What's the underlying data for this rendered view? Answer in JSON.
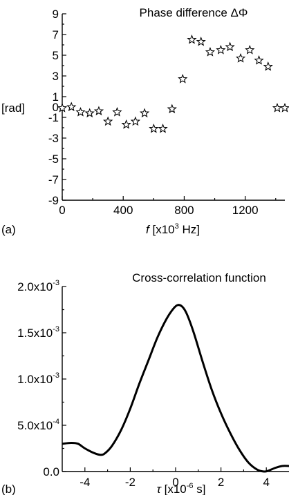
{
  "chart_data": [
    {
      "panel_label": "(a)",
      "type": "scatter",
      "marker": "star",
      "title": "Phase difference ΔΦ",
      "ylabel": "[rad]",
      "xlabel_parts": [
        "f",
        " [x10",
        "3",
        " Hz]"
      ],
      "xlim": [
        0,
        1460
      ],
      "ylim": [
        -9,
        9
      ],
      "xticks": [
        0,
        400,
        800,
        1200
      ],
      "yticks": [
        9,
        7,
        5,
        3,
        1,
        0,
        -1,
        -3,
        -5,
        -7,
        -9
      ],
      "ytick_labels": [
        "9",
        "7",
        "5",
        "3",
        "1",
        "0",
        "-1",
        "-3",
        "-5",
        "-7",
        "-9"
      ],
      "points": [
        {
          "x": 0,
          "y": -0.1
        },
        {
          "x": 60,
          "y": 0.0
        },
        {
          "x": 120,
          "y": -0.5
        },
        {
          "x": 180,
          "y": -0.6
        },
        {
          "x": 240,
          "y": -0.4
        },
        {
          "x": 300,
          "y": -1.4
        },
        {
          "x": 360,
          "y": -0.5
        },
        {
          "x": 420,
          "y": -1.7
        },
        {
          "x": 480,
          "y": -1.4
        },
        {
          "x": 540,
          "y": -0.6
        },
        {
          "x": 600,
          "y": -2.1
        },
        {
          "x": 660,
          "y": -2.1
        },
        {
          "x": 720,
          "y": -0.2
        },
        {
          "x": 790,
          "y": 2.7
        },
        {
          "x": 850,
          "y": 6.5
        },
        {
          "x": 910,
          "y": 6.3
        },
        {
          "x": 970,
          "y": 5.3
        },
        {
          "x": 1040,
          "y": 5.5
        },
        {
          "x": 1100,
          "y": 5.8
        },
        {
          "x": 1170,
          "y": 4.7
        },
        {
          "x": 1230,
          "y": 5.5
        },
        {
          "x": 1290,
          "y": 4.5
        },
        {
          "x": 1350,
          "y": 3.9
        },
        {
          "x": 1410,
          "y": -0.1
        },
        {
          "x": 1460,
          "y": -0.1
        }
      ]
    },
    {
      "panel_label": "(b)",
      "type": "line",
      "title": "Cross-correlation function",
      "xlabel_parts": [
        "τ",
        " [x10",
        "-6",
        " s]"
      ],
      "xlim": [
        -5,
        5
      ],
      "ylim": [
        0,
        0.002
      ],
      "xticks": [
        -4,
        -2,
        0,
        2,
        4
      ],
      "yticks": [
        {
          "value": 0.002,
          "base": "2.0x10",
          "exp": "-3"
        },
        {
          "value": 0.0015,
          "base": "1.5x10",
          "exp": "-3"
        },
        {
          "value": 0.001,
          "base": "1.0x10",
          "exp": "-3"
        },
        {
          "value": 0.0005,
          "base": "5.0x10",
          "exp": "-4"
        },
        {
          "value": 0,
          "base": "0.0",
          "exp": ""
        }
      ],
      "x": [
        -5.0,
        -4.6,
        -4.3,
        -4.0,
        -3.6,
        -3.3,
        -3.1,
        -2.8,
        -2.4,
        -2.0,
        -1.6,
        -1.2,
        -0.8,
        -0.4,
        -0.1,
        0.1,
        0.3,
        0.5,
        0.8,
        1.2,
        1.6,
        2.0,
        2.4,
        2.8,
        3.2,
        3.6,
        3.9,
        4.1,
        4.4,
        4.7,
        5.0
      ],
      "y": [
        0.0003,
        0.00031,
        0.0003,
        0.00025,
        0.0002,
        0.00018,
        0.0002,
        0.00028,
        0.00045,
        0.00068,
        0.00095,
        0.0012,
        0.00145,
        0.00165,
        0.00176,
        0.0018,
        0.00178,
        0.0017,
        0.0015,
        0.00118,
        0.00088,
        0.00063,
        0.00042,
        0.00024,
        0.0001,
        2e-05,
        0.0,
        1e-05,
        4e-05,
        6e-05,
        6e-05
      ]
    }
  ]
}
